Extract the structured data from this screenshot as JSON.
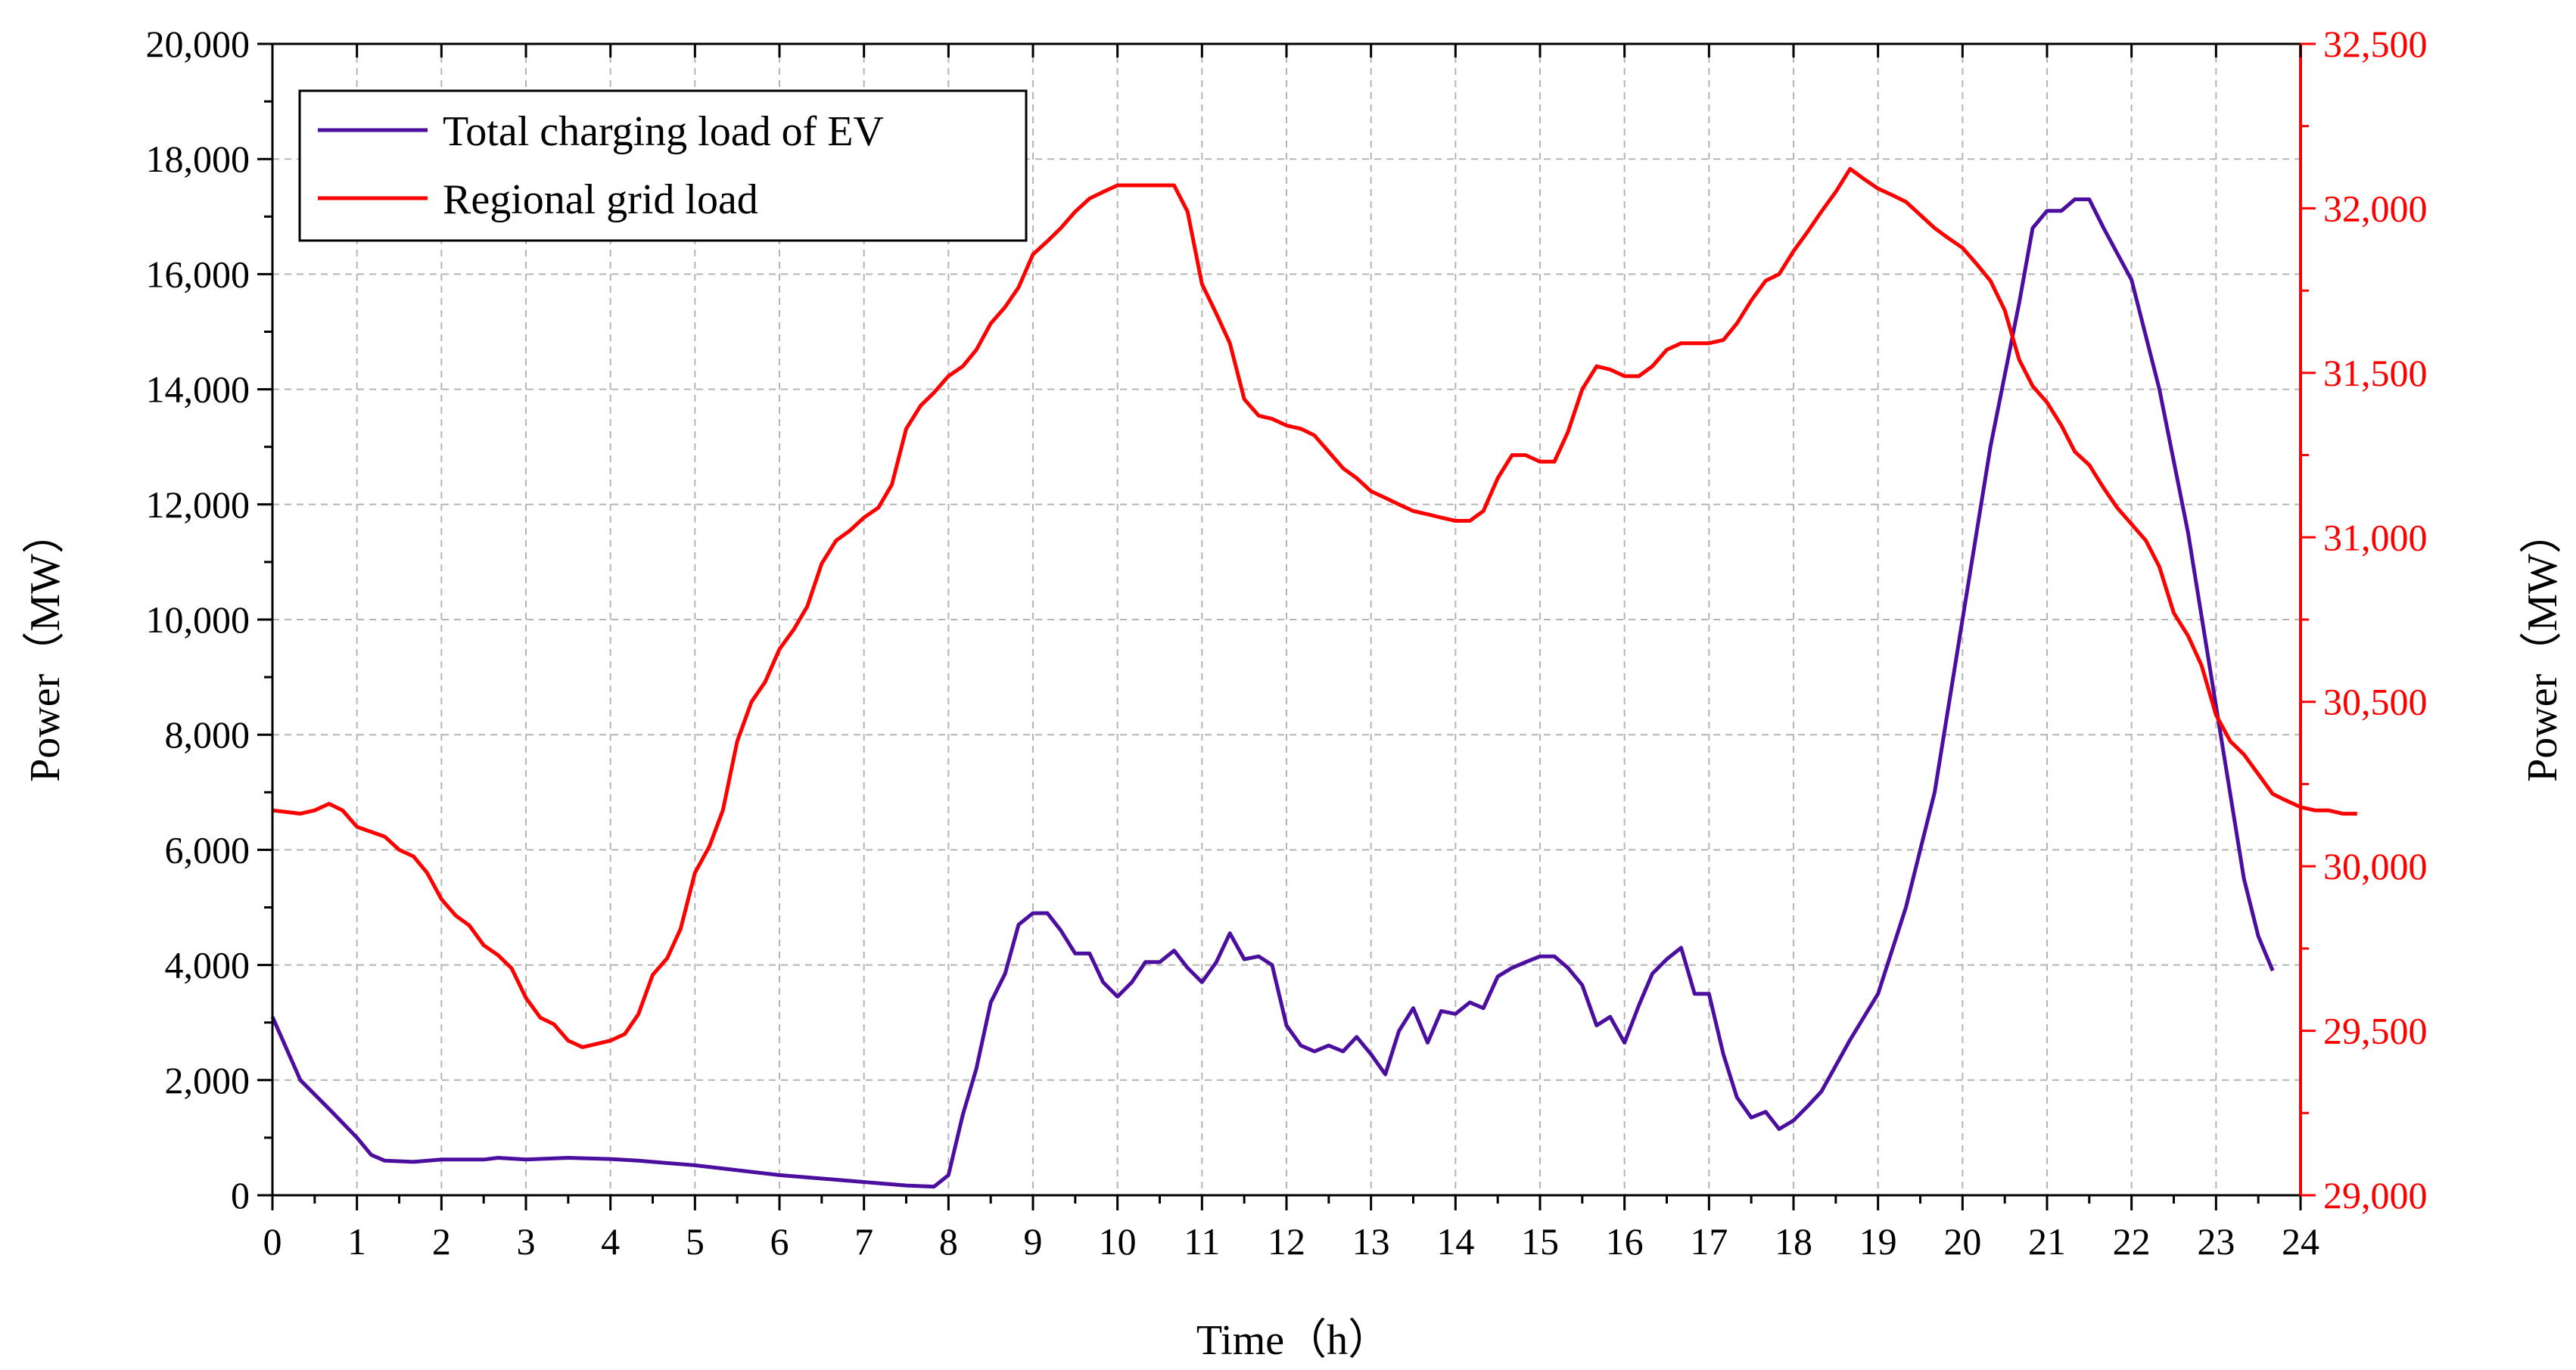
{
  "chart_data": {
    "type": "line",
    "xlabel": "Time（h）",
    "ylabel_left": "Power（MW）",
    "ylabel_right": "Power（MW）",
    "xlim": [
      0,
      24
    ],
    "ylim_left": [
      0,
      20000
    ],
    "ylim_right": [
      29000,
      32500
    ],
    "x_ticks": [
      0,
      1,
      2,
      3,
      4,
      5,
      6,
      7,
      8,
      9,
      10,
      11,
      12,
      13,
      14,
      15,
      16,
      17,
      18,
      19,
      20,
      21,
      22,
      23,
      24
    ],
    "y_ticks_left": [
      0,
      2000,
      4000,
      6000,
      8000,
      10000,
      12000,
      14000,
      16000,
      18000,
      20000
    ],
    "y_ticks_right": [
      29000,
      29500,
      30000,
      30500,
      31000,
      31500,
      32000,
      32500
    ],
    "y_tick_labels_left": [
      "0",
      "2,000",
      "4,000",
      "6,000",
      "8,000",
      "10,000",
      "12,000",
      "14,000",
      "16,000",
      "18,000",
      "20,000"
    ],
    "y_tick_labels_right": [
      "29,000",
      "29,500",
      "30,000",
      "30,500",
      "31,000",
      "31,500",
      "32,000",
      "32,500"
    ],
    "grid": true,
    "legend_position": "top-left",
    "series": [
      {
        "name": "Total charging load of EV",
        "axis": "left",
        "color": "#4b0e9e",
        "points": [
          [
            0,
            3100
          ],
          [
            0.33,
            2000
          ],
          [
            0.67,
            1500
          ],
          [
            1,
            1000
          ],
          [
            1.17,
            700
          ],
          [
            1.33,
            600
          ],
          [
            1.67,
            580
          ],
          [
            2,
            620
          ],
          [
            2.5,
            620
          ],
          [
            2.67,
            650
          ],
          [
            3,
            620
          ],
          [
            3.5,
            650
          ],
          [
            4,
            630
          ],
          [
            4.33,
            600
          ],
          [
            5,
            520
          ],
          [
            6,
            350
          ],
          [
            7,
            230
          ],
          [
            7.5,
            170
          ],
          [
            7.83,
            150
          ],
          [
            8,
            350
          ],
          [
            8.17,
            1400
          ],
          [
            8.33,
            2200
          ],
          [
            8.5,
            3350
          ],
          [
            8.67,
            3850
          ],
          [
            8.83,
            4700
          ],
          [
            9,
            4900
          ],
          [
            9.17,
            4900
          ],
          [
            9.33,
            4600
          ],
          [
            9.5,
            4200
          ],
          [
            9.67,
            4200
          ],
          [
            9.83,
            3700
          ],
          [
            10,
            3450
          ],
          [
            10.17,
            3700
          ],
          [
            10.33,
            4050
          ],
          [
            10.5,
            4050
          ],
          [
            10.67,
            4250
          ],
          [
            10.83,
            3950
          ],
          [
            11,
            3700
          ],
          [
            11.17,
            4050
          ],
          [
            11.33,
            4550
          ],
          [
            11.5,
            4100
          ],
          [
            11.67,
            4150
          ],
          [
            11.83,
            4000
          ],
          [
            12,
            2950
          ],
          [
            12.17,
            2600
          ],
          [
            12.33,
            2500
          ],
          [
            12.5,
            2600
          ],
          [
            12.67,
            2500
          ],
          [
            12.83,
            2750
          ],
          [
            13,
            2450
          ],
          [
            13.17,
            2100
          ],
          [
            13.33,
            2850
          ],
          [
            13.5,
            3250
          ],
          [
            13.67,
            2650
          ],
          [
            13.83,
            3200
          ],
          [
            14,
            3150
          ],
          [
            14.17,
            3350
          ],
          [
            14.33,
            3250
          ],
          [
            14.5,
            3800
          ],
          [
            14.67,
            3950
          ],
          [
            14.83,
            4050
          ],
          [
            15,
            4150
          ],
          [
            15.17,
            4150
          ],
          [
            15.33,
            3950
          ],
          [
            15.5,
            3650
          ],
          [
            15.67,
            2950
          ],
          [
            15.83,
            3100
          ],
          [
            16,
            2650
          ],
          [
            16.17,
            3300
          ],
          [
            16.33,
            3850
          ],
          [
            16.5,
            4100
          ],
          [
            16.67,
            4300
          ],
          [
            16.83,
            3500
          ],
          [
            17,
            3500
          ],
          [
            17.17,
            2450
          ],
          [
            17.33,
            1700
          ],
          [
            17.5,
            1350
          ],
          [
            17.67,
            1450
          ],
          [
            17.83,
            1150
          ],
          [
            18,
            1300
          ],
          [
            18.17,
            1550
          ],
          [
            18.33,
            1800
          ],
          [
            18.67,
            2700
          ],
          [
            19,
            3500
          ],
          [
            19.33,
            5000
          ],
          [
            19.67,
            7000
          ],
          [
            20,
            10000
          ],
          [
            20.33,
            13000
          ],
          [
            20.67,
            15500
          ],
          [
            20.83,
            16800
          ],
          [
            21,
            17100
          ],
          [
            21.17,
            17100
          ],
          [
            21.33,
            17300
          ],
          [
            21.5,
            17300
          ],
          [
            21.67,
            16800
          ],
          [
            22,
            15900
          ],
          [
            22.33,
            14000
          ],
          [
            22.67,
            11500
          ],
          [
            23,
            8500
          ],
          [
            23.33,
            5500
          ],
          [
            23.5,
            4500
          ],
          [
            23.67,
            3900
          ]
        ]
      },
      {
        "name": "Regional grid load",
        "axis": "right",
        "color": "#ff0000",
        "points": [
          [
            0,
            30170
          ],
          [
            0.33,
            30160
          ],
          [
            0.5,
            30170
          ],
          [
            0.67,
            30190
          ],
          [
            0.83,
            30170
          ],
          [
            1,
            30120
          ],
          [
            1.33,
            30090
          ],
          [
            1.5,
            30050
          ],
          [
            1.67,
            30030
          ],
          [
            1.83,
            29980
          ],
          [
            2,
            29900
          ],
          [
            2.17,
            29850
          ],
          [
            2.33,
            29820
          ],
          [
            2.5,
            29760
          ],
          [
            2.67,
            29730
          ],
          [
            2.83,
            29690
          ],
          [
            3,
            29600
          ],
          [
            3.17,
            29540
          ],
          [
            3.33,
            29520
          ],
          [
            3.5,
            29470
          ],
          [
            3.67,
            29450
          ],
          [
            4,
            29470
          ],
          [
            4.17,
            29490
          ],
          [
            4.33,
            29550
          ],
          [
            4.5,
            29670
          ],
          [
            4.67,
            29720
          ],
          [
            4.83,
            29810
          ],
          [
            5,
            29980
          ],
          [
            5.17,
            30060
          ],
          [
            5.33,
            30170
          ],
          [
            5.5,
            30380
          ],
          [
            5.67,
            30500
          ],
          [
            5.83,
            30560
          ],
          [
            6,
            30660
          ],
          [
            6.17,
            30720
          ],
          [
            6.33,
            30790
          ],
          [
            6.5,
            30920
          ],
          [
            6.67,
            30990
          ],
          [
            6.83,
            31020
          ],
          [
            7,
            31060
          ],
          [
            7.17,
            31090
          ],
          [
            7.33,
            31160
          ],
          [
            7.5,
            31330
          ],
          [
            7.67,
            31400
          ],
          [
            7.83,
            31440
          ],
          [
            8,
            31490
          ],
          [
            8.17,
            31520
          ],
          [
            8.33,
            31570
          ],
          [
            8.5,
            31650
          ],
          [
            8.67,
            31700
          ],
          [
            8.83,
            31760
          ],
          [
            9,
            31860
          ],
          [
            9.17,
            31900
          ],
          [
            9.33,
            31940
          ],
          [
            9.5,
            31990
          ],
          [
            9.67,
            32030
          ],
          [
            9.83,
            32050
          ],
          [
            10,
            32070
          ],
          [
            10.17,
            32070
          ],
          [
            10.33,
            32070
          ],
          [
            10.5,
            32070
          ],
          [
            10.67,
            32070
          ],
          [
            10.83,
            31990
          ],
          [
            11,
            31770
          ],
          [
            11.17,
            31680
          ],
          [
            11.33,
            31590
          ],
          [
            11.5,
            31420
          ],
          [
            11.67,
            31370
          ],
          [
            11.83,
            31360
          ],
          [
            12,
            31340
          ],
          [
            12.17,
            31330
          ],
          [
            12.33,
            31310
          ],
          [
            12.5,
            31260
          ],
          [
            12.67,
            31210
          ],
          [
            12.83,
            31180
          ],
          [
            13,
            31140
          ],
          [
            13.17,
            31120
          ],
          [
            13.33,
            31100
          ],
          [
            13.5,
            31080
          ],
          [
            13.67,
            31070
          ],
          [
            13.83,
            31060
          ],
          [
            14,
            31050
          ],
          [
            14.17,
            31050
          ],
          [
            14.33,
            31080
          ],
          [
            14.5,
            31180
          ],
          [
            14.67,
            31250
          ],
          [
            14.83,
            31250
          ],
          [
            15,
            31230
          ],
          [
            15.17,
            31230
          ],
          [
            15.33,
            31320
          ],
          [
            15.5,
            31450
          ],
          [
            15.67,
            31520
          ],
          [
            15.83,
            31510
          ],
          [
            16,
            31490
          ],
          [
            16.17,
            31490
          ],
          [
            16.33,
            31520
          ],
          [
            16.5,
            31570
          ],
          [
            16.67,
            31590
          ],
          [
            16.83,
            31590
          ],
          [
            17,
            31590
          ],
          [
            17.17,
            31600
          ],
          [
            17.33,
            31650
          ],
          [
            17.5,
            31720
          ],
          [
            17.67,
            31780
          ],
          [
            17.83,
            31800
          ],
          [
            18,
            31870
          ],
          [
            18.17,
            31930
          ],
          [
            18.33,
            31990
          ],
          [
            18.5,
            32050
          ],
          [
            18.67,
            32120
          ],
          [
            18.83,
            32090
          ],
          [
            19,
            32060
          ],
          [
            19.17,
            32040
          ],
          [
            19.33,
            32020
          ],
          [
            19.5,
            31980
          ],
          [
            19.67,
            31940
          ],
          [
            19.83,
            31910
          ],
          [
            20,
            31880
          ],
          [
            20.17,
            31830
          ],
          [
            20.33,
            31780
          ],
          [
            20.5,
            31690
          ],
          [
            20.67,
            31540
          ],
          [
            20.83,
            31460
          ],
          [
            21,
            31410
          ],
          [
            21.17,
            31340
          ],
          [
            21.33,
            31260
          ],
          [
            21.5,
            31220
          ],
          [
            21.67,
            31150
          ],
          [
            21.83,
            31090
          ],
          [
            22,
            31040
          ],
          [
            22.17,
            30990
          ],
          [
            22.33,
            30910
          ],
          [
            22.5,
            30770
          ],
          [
            22.67,
            30700
          ],
          [
            22.83,
            30610
          ],
          [
            23,
            30460
          ],
          [
            23.17,
            30380
          ],
          [
            23.33,
            30340
          ],
          [
            23.5,
            30280
          ],
          [
            23.67,
            30220
          ],
          [
            23.83,
            30200
          ],
          [
            24,
            30180
          ],
          [
            24.17,
            30170
          ],
          [
            24.33,
            30170
          ],
          [
            24.5,
            30160
          ],
          [
            24.67,
            30160
          ]
        ]
      }
    ]
  }
}
